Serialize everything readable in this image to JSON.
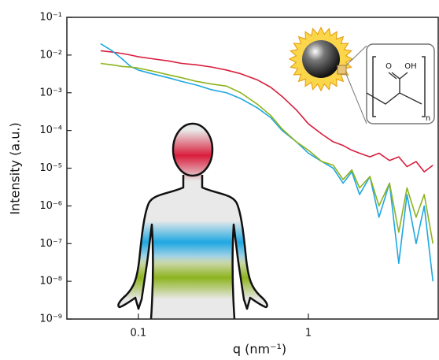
{
  "chart_data": {
    "type": "line",
    "x_label": "q (nm⁻¹)",
    "y_label": "Intensity (a.u.)",
    "log_x": true,
    "log_y": true,
    "xlim": [
      0.038,
      5.8
    ],
    "xticks": [
      0.1,
      1
    ],
    "ylim": [
      1e-09,
      0.1
    ],
    "yticks": [
      {
        "value": 1e-09,
        "label": "10⁻⁹"
      },
      {
        "value": 1e-08,
        "label": "10⁻⁸"
      },
      {
        "value": 1e-07,
        "label": "10⁻⁷"
      },
      {
        "value": 1e-06,
        "label": "10⁻⁶"
      },
      {
        "value": 1e-05,
        "label": "10⁻⁵"
      },
      {
        "value": 0.0001,
        "label": "10⁻⁴"
      },
      {
        "value": 0.001,
        "label": "10⁻³"
      },
      {
        "value": 0.01,
        "label": "10⁻²"
      },
      {
        "value": 0.1,
        "label": "10⁻¹"
      }
    ],
    "x": [
      0.06,
      0.07,
      0.08,
      0.09,
      0.1,
      0.12,
      0.15,
      0.18,
      0.22,
      0.27,
      0.33,
      0.4,
      0.5,
      0.6,
      0.7,
      0.85,
      1,
      1.2,
      1.4,
      1.6,
      1.8,
      2,
      2.3,
      2.6,
      3,
      3.4,
      3.8,
      4.3,
      4.8,
      5.4
    ],
    "series": [
      {
        "color": "#d81e3c",
        "values": [
          0.013,
          0.012,
          0.011,
          0.01,
          0.009,
          0.008,
          0.007,
          0.006,
          0.0055,
          0.0048,
          0.004,
          0.0032,
          0.0022,
          0.0014,
          0.0008,
          0.00035,
          0.00015,
          8e-05,
          5e-05,
          4e-05,
          3e-05,
          2.5e-05,
          2e-05,
          2.5e-05,
          1.6e-05,
          2e-05,
          1.1e-05,
          1.5e-05,
          8e-06,
          1.2e-05
        ]
      },
      {
        "color": "#1ea7e1",
        "values": [
          0.02,
          0.013,
          0.008,
          0.005,
          0.004,
          0.0032,
          0.0025,
          0.002,
          0.0016,
          0.0012,
          0.001,
          0.0007,
          0.0004,
          0.00022,
          0.0001,
          5e-05,
          2.5e-05,
          1.5e-05,
          1e-05,
          4e-06,
          8e-06,
          2e-06,
          6e-06,
          5e-07,
          4e-06,
          3e-08,
          2e-06,
          1e-07,
          1e-06,
          1e-08
        ]
      },
      {
        "color": "#8db31e",
        "values": [
          0.006,
          0.0055,
          0.005,
          0.0048,
          0.0045,
          0.0038,
          0.003,
          0.0025,
          0.002,
          0.0017,
          0.0015,
          0.001,
          0.0005,
          0.00025,
          0.00011,
          5e-05,
          3e-05,
          1.5e-05,
          1.2e-05,
          5e-06,
          9e-06,
          3e-06,
          6e-06,
          1e-06,
          4e-06,
          2e-07,
          3e-06,
          5e-07,
          2e-06,
          1e-07
        ]
      }
    ],
    "structure_labels": [
      "O",
      "OH",
      "n"
    ]
  }
}
